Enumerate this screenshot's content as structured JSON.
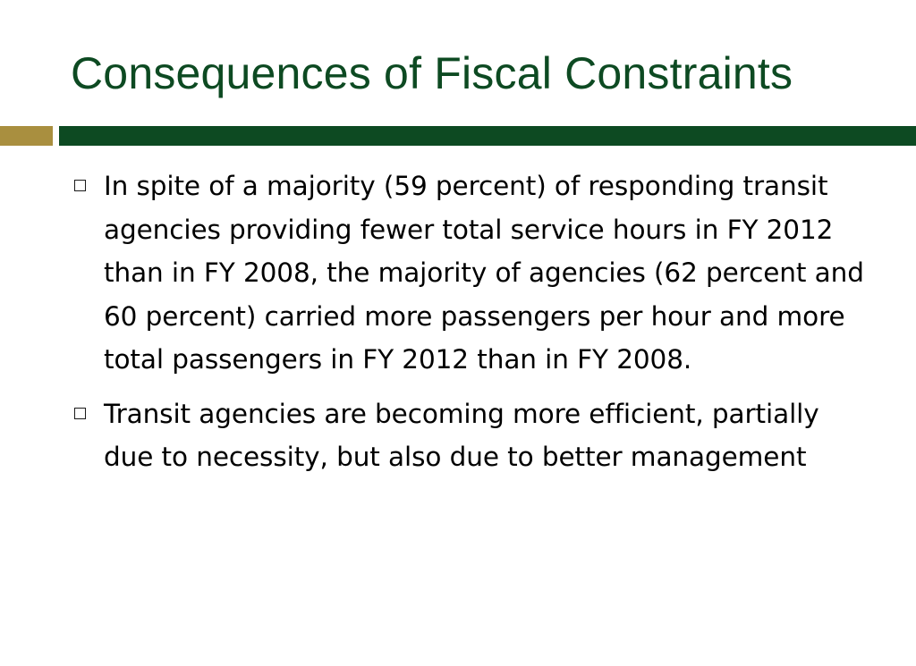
{
  "slide": {
    "title": "Consequences of Fiscal Constraints",
    "colors": {
      "title": "#0d4a22",
      "bar_accent": "#a98f3f",
      "bar_main": "#0d4a22",
      "text": "#000000"
    },
    "bullets": [
      {
        "icon": "square-bullet-icon",
        "text": "In spite of a majority (59 percent) of responding transit agencies providing fewer total service hours in FY 2012 than in FY 2008, the majority of agencies (62 percent and 60 percent) carried more passengers per hour and more total passengers in FY 2012 than in FY 2008."
      },
      {
        "icon": "square-bullet-icon",
        "text": "Transit agencies are becoming more efficient, partially due to necessity, but also due to better management"
      }
    ]
  }
}
